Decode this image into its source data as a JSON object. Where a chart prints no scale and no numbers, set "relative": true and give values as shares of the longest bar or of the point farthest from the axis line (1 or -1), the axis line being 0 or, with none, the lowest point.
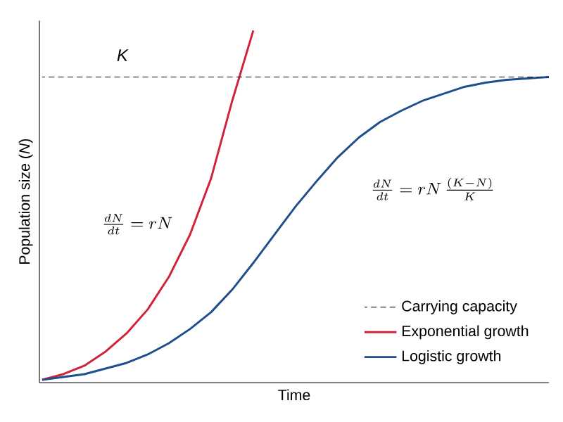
{
  "chart_data": {
    "type": "line",
    "relative": true,
    "xlabel": "Time",
    "ylabel": "Population size (*N*)",
    "categories": [
      null,
      null,
      null,
      null,
      null,
      null,
      null,
      null,
      null,
      null,
      null,
      null,
      null,
      null,
      null,
      null,
      null,
      null,
      null,
      null,
      null,
      null,
      null,
      null,
      null
    ],
    "series": [
      {
        "name": "Carrying capacity",
        "color": "#000000",
        "line_style": "dashed",
        "values": [
          0.868,
          0.868,
          0.868,
          0.868,
          0.868,
          0.868,
          0.868,
          0.868,
          0.868,
          0.868,
          0.868,
          0.868,
          0.868,
          0.868,
          0.868,
          0.868,
          0.868,
          0.868,
          0.868,
          0.868,
          0.868,
          0.868,
          0.868,
          0.868,
          0.868
        ]
      },
      {
        "name": "Exponential growth",
        "color": "#d0223a",
        "values": [
          0.008,
          0.024,
          0.048,
          0.088,
          0.14,
          0.208,
          0.3,
          0.42,
          0.58,
          0.8,
          1.0,
          null,
          null,
          null,
          null,
          null,
          null,
          null,
          null,
          null,
          null,
          null,
          null,
          null,
          null
        ]
      },
      {
        "name": "Logistic growth",
        "color": "#1f4e8c",
        "values": [
          0.008,
          0.016,
          0.024,
          0.04,
          0.056,
          0.08,
          0.112,
          0.152,
          0.2,
          0.264,
          0.34,
          0.42,
          0.5,
          0.572,
          0.64,
          0.696,
          0.74,
          0.772,
          0.8,
          0.82,
          0.84,
          0.852,
          0.86,
          0.864,
          0.868
        ]
      }
    ],
    "annotations": [
      "K",
      "\\frac{dN}{dt}=rN",
      "\\frac{dN}{dt}=rN\\,\\frac{(K-N)}{K}"
    ],
    "legend": "bottom right",
    "marker": "none",
    "line_style": "solid"
  }
}
